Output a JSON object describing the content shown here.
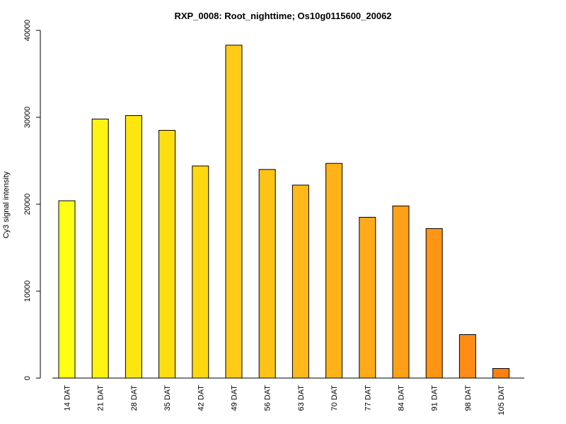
{
  "chart_data": {
    "type": "bar",
    "title": "RXP_0008: Root_nighttime; Os10g0115600_20062",
    "xlabel": "",
    "ylabel": "Cy3 signal intensity",
    "ylim": [
      0,
      40000
    ],
    "yticks": [
      0,
      10000,
      20000,
      30000,
      40000
    ],
    "categories": [
      "14 DAT",
      "21 DAT",
      "28 DAT",
      "35 DAT",
      "42 DAT",
      "49 DAT",
      "56 DAT",
      "63 DAT",
      "70 DAT",
      "77 DAT",
      "84 DAT",
      "91 DAT",
      "98 DAT",
      "105 DAT"
    ],
    "values": [
      20400,
      29800,
      30200,
      28500,
      24400,
      38300,
      24000,
      22200,
      24700,
      18500,
      19800,
      17200,
      5000,
      1100
    ],
    "colors": [
      "#FFFF14",
      "#FFF312",
      "#FFE611",
      "#FFDE10",
      "#FFD80F",
      "#FFCB16",
      "#FFC218",
      "#FFB918",
      "#FFB319",
      "#FFAA1A",
      "#FFA017",
      "#FF9515",
      "#FF8C14",
      "#FF8012"
    ],
    "grid": false,
    "legend": "none"
  }
}
